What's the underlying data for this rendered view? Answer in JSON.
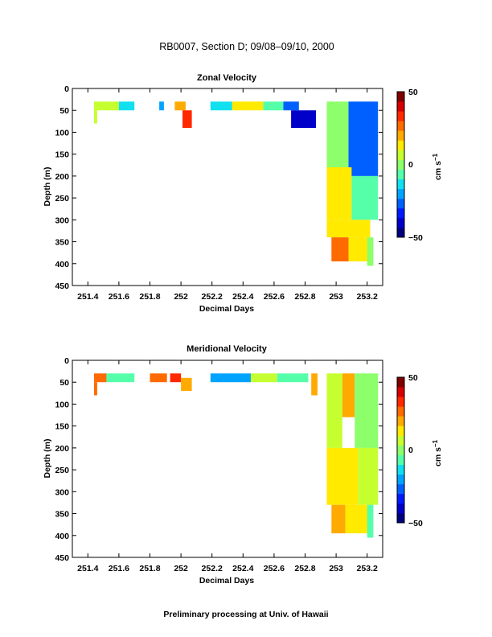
{
  "title": "RB0007, Section D; 09/08–09/10, 2000",
  "footer": "Preliminary processing at Univ. of Hawaii",
  "colorbar": {
    "ticks": [
      "50",
      "0",
      "−50"
    ],
    "unit_main": "cm s",
    "unit_exp": "−1",
    "range": [
      -50,
      50
    ],
    "colors": [
      "#00007f",
      "#0000c8",
      "#0019ff",
      "#0060ff",
      "#00a4ff",
      "#10e0f0",
      "#55ffaa",
      "#8cff6a",
      "#c6ff30",
      "#ffea00",
      "#ffaa00",
      "#ff6a00",
      "#ff2800",
      "#d60000",
      "#7f0000"
    ]
  },
  "chart_data": [
    {
      "type": "heatmap",
      "title": "Zonal Velocity",
      "xlabel": "Decimal Days",
      "ylabel": "Depth (m)",
      "xlim": [
        251.3,
        253.3
      ],
      "ylim": [
        450,
        0
      ],
      "x_ticks": [
        "251.4",
        "251.6",
        "251.8",
        "252",
        "252.2",
        "252.4",
        "252.6",
        "252.8",
        "253",
        "253.2"
      ],
      "y_ticks": [
        "0",
        "50",
        "100",
        "150",
        "200",
        "250",
        "300",
        "350",
        "400",
        "450"
      ],
      "cells": [
        {
          "x0": 251.44,
          "x1": 251.6,
          "d0": 30,
          "d1": 50,
          "v": 5
        },
        {
          "x0": 251.44,
          "x1": 251.46,
          "d0": 50,
          "d1": 80,
          "v": 4
        },
        {
          "x0": 251.6,
          "x1": 251.7,
          "d0": 30,
          "d1": 50,
          "v": -15
        },
        {
          "x0": 251.86,
          "x1": 251.89,
          "d0": 30,
          "d1": 50,
          "v": -20
        },
        {
          "x0": 251.96,
          "x1": 252.03,
          "d0": 30,
          "d1": 50,
          "v": 22
        },
        {
          "x0": 252.01,
          "x1": 252.07,
          "d0": 50,
          "d1": 90,
          "v": 32
        },
        {
          "x0": 252.19,
          "x1": 252.33,
          "d0": 30,
          "d1": 50,
          "v": -12
        },
        {
          "x0": 252.33,
          "x1": 252.53,
          "d0": 30,
          "d1": 50,
          "v": 12
        },
        {
          "x0": 252.53,
          "x1": 252.66,
          "d0": 30,
          "d1": 50,
          "v": -5
        },
        {
          "x0": 252.66,
          "x1": 252.76,
          "d0": 30,
          "d1": 50,
          "v": -25
        },
        {
          "x0": 252.71,
          "x1": 252.87,
          "d0": 50,
          "d1": 90,
          "v": -40
        },
        {
          "x0": 252.94,
          "x1": 253.08,
          "d0": 30,
          "d1": 180,
          "v": -2
        },
        {
          "x0": 253.08,
          "x1": 253.27,
          "d0": 30,
          "d1": 200,
          "v": -25
        },
        {
          "x0": 252.94,
          "x1": 253.1,
          "d0": 180,
          "d1": 300,
          "v": 10
        },
        {
          "x0": 253.1,
          "x1": 253.27,
          "d0": 200,
          "d1": 300,
          "v": -5
        },
        {
          "x0": 252.94,
          "x1": 253.22,
          "d0": 300,
          "d1": 340,
          "v": 15
        },
        {
          "x0": 252.97,
          "x1": 253.08,
          "d0": 340,
          "d1": 395,
          "v": 28
        },
        {
          "x0": 253.08,
          "x1": 253.22,
          "d0": 340,
          "d1": 395,
          "v": 10
        },
        {
          "x0": 253.2,
          "x1": 253.24,
          "d0": 340,
          "d1": 405,
          "v": -3
        }
      ]
    },
    {
      "type": "heatmap",
      "title": "Meridional Velocity",
      "xlabel": "Decimal Days",
      "ylabel": "Depth (m)",
      "xlim": [
        251.3,
        253.3
      ],
      "ylim": [
        450,
        0
      ],
      "x_ticks": [
        "251.4",
        "251.6",
        "251.8",
        "252",
        "252.2",
        "252.4",
        "252.6",
        "252.8",
        "253",
        "253.2"
      ],
      "y_ticks": [
        "0",
        "50",
        "100",
        "150",
        "200",
        "250",
        "300",
        "350",
        "400",
        "450"
      ],
      "cells": [
        {
          "x0": 251.44,
          "x1": 251.52,
          "d0": 30,
          "d1": 50,
          "v": 28
        },
        {
          "x0": 251.44,
          "x1": 251.46,
          "d0": 50,
          "d1": 80,
          "v": 25
        },
        {
          "x0": 251.52,
          "x1": 251.7,
          "d0": 30,
          "d1": 50,
          "v": -5
        },
        {
          "x0": 251.8,
          "x1": 251.91,
          "d0": 30,
          "d1": 50,
          "v": 25
        },
        {
          "x0": 251.93,
          "x1": 252.0,
          "d0": 30,
          "d1": 50,
          "v": 35
        },
        {
          "x0": 252.0,
          "x1": 252.07,
          "d0": 40,
          "d1": 70,
          "v": 18
        },
        {
          "x0": 252.19,
          "x1": 252.45,
          "d0": 30,
          "d1": 50,
          "v": -18
        },
        {
          "x0": 252.45,
          "x1": 252.62,
          "d0": 30,
          "d1": 50,
          "v": 5
        },
        {
          "x0": 252.62,
          "x1": 252.82,
          "d0": 30,
          "d1": 50,
          "v": -8
        },
        {
          "x0": 252.84,
          "x1": 252.88,
          "d0": 30,
          "d1": 80,
          "v": 22
        },
        {
          "x0": 252.94,
          "x1": 253.04,
          "d0": 30,
          "d1": 200,
          "v": 5
        },
        {
          "x0": 253.04,
          "x1": 253.12,
          "d0": 30,
          "d1": 130,
          "v": 22
        },
        {
          "x0": 253.12,
          "x1": 253.27,
          "d0": 30,
          "d1": 200,
          "v": -3
        },
        {
          "x0": 252.94,
          "x1": 253.14,
          "d0": 200,
          "d1": 330,
          "v": 12
        },
        {
          "x0": 253.14,
          "x1": 253.27,
          "d0": 200,
          "d1": 330,
          "v": 5
        },
        {
          "x0": 252.97,
          "x1": 253.06,
          "d0": 330,
          "d1": 395,
          "v": 22
        },
        {
          "x0": 253.06,
          "x1": 253.22,
          "d0": 330,
          "d1": 395,
          "v": 10
        },
        {
          "x0": 253.2,
          "x1": 253.24,
          "d0": 330,
          "d1": 405,
          "v": -5
        }
      ]
    }
  ]
}
